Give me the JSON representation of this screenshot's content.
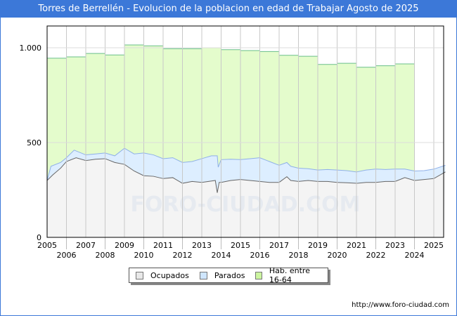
{
  "title": "Torres de Berrellén - Evolucion de la poblacion en edad de Trabajar Agosto de 2025",
  "footer_url": "http://www.foro-ciudad.com",
  "watermark": "FORO-CIUDAD.COM",
  "colors": {
    "ocupados": "#f4f4f4",
    "parados": "#ddeeff",
    "hab": "#e4fccc",
    "hab_line": "#6abf8a",
    "title_bar": "#3c78d8"
  },
  "chart_data": {
    "type": "area",
    "title": "Torres de Berrellén - Evolucion de la poblacion en edad de Trabajar Agosto de 2025",
    "xlabel": "",
    "ylabel": "",
    "xlim": [
      2005,
      2025.6
    ],
    "ylim": [
      0,
      1120
    ],
    "yticks": [
      {
        "v": 0,
        "label": "0"
      },
      {
        "v": 500,
        "label": "500"
      },
      {
        "v": 1000,
        "label": "1.000"
      }
    ],
    "xticks": [
      "2005",
      "2006",
      "2007",
      "2008",
      "2009",
      "2010",
      "2011",
      "2012",
      "2013",
      "2014",
      "2015",
      "2016",
      "2017",
      "2018",
      "2019",
      "2020",
      "2021",
      "2022",
      "2023",
      "2024",
      "2025"
    ],
    "grid": true,
    "legend_position": "bottom",
    "legend": [
      "Ocupados",
      "Parados",
      "Hab. entre 16-64"
    ],
    "hab_entre_16_64": {
      "years": [
        2005,
        2006,
        2007,
        2008,
        2009,
        2010,
        2011,
        2012,
        2013,
        2014,
        2015,
        2016,
        2017,
        2018,
        2019,
        2020,
        2021,
        2022,
        2023
      ],
      "values": [
        945,
        952,
        970,
        962,
        1015,
        1010,
        995,
        995,
        1000,
        990,
        985,
        980,
        960,
        955,
        912,
        918,
        897,
        905,
        915
      ]
    },
    "ocupados": {
      "x": [
        2005,
        2005.3,
        2005.7,
        2006,
        2006.5,
        2007,
        2007.5,
        2008,
        2008.5,
        2009,
        2009.5,
        2010,
        2010.5,
        2011,
        2011.5,
        2012,
        2012.5,
        2013,
        2013.7,
        2013.8,
        2013.9,
        2014,
        2014.5,
        2015,
        2015.5,
        2016,
        2016.5,
        2017,
        2017.4,
        2017.6,
        2018,
        2018.5,
        2019,
        2019.5,
        2020,
        2020.5,
        2021,
        2021.5,
        2022,
        2022.5,
        2023,
        2023.5,
        2024,
        2024.5,
        2025,
        2025.6
      ],
      "values": [
        300,
        330,
        365,
        400,
        420,
        405,
        412,
        415,
        395,
        385,
        350,
        325,
        322,
        310,
        315,
        285,
        295,
        290,
        300,
        235,
        290,
        290,
        300,
        305,
        300,
        295,
        290,
        290,
        320,
        300,
        295,
        300,
        295,
        295,
        290,
        288,
        285,
        290,
        290,
        295,
        295,
        315,
        300,
        305,
        310,
        345
      ]
    },
    "ocupados_mas_parados": {
      "x": [
        2005,
        2005.2,
        2005.7,
        2006,
        2006.4,
        2007,
        2007.5,
        2008,
        2008.5,
        2009,
        2009.5,
        2010,
        2010.5,
        2011,
        2011.5,
        2012,
        2012.5,
        2013,
        2013.5,
        2013.8,
        2013.85,
        2014,
        2014.5,
        2015,
        2015.5,
        2016,
        2016.5,
        2017,
        2017.4,
        2017.6,
        2018,
        2018.5,
        2019,
        2019.5,
        2020,
        2020.5,
        2021,
        2021.5,
        2022,
        2022.5,
        2023,
        2023.5,
        2024,
        2024.5,
        2025,
        2025.6
      ],
      "values": [
        300,
        375,
        395,
        420,
        460,
        435,
        440,
        445,
        430,
        470,
        440,
        445,
        435,
        415,
        420,
        395,
        400,
        415,
        430,
        430,
        370,
        410,
        412,
        410,
        415,
        420,
        400,
        380,
        395,
        375,
        365,
        362,
        355,
        358,
        355,
        352,
        345,
        355,
        360,
        358,
        360,
        360,
        350,
        352,
        360,
        380
      ]
    }
  }
}
